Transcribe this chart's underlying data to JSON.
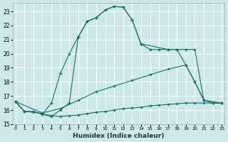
{
  "xlabel": "Humidex (Indice chaleur)",
  "bg_color": "#cce8e8",
  "grid_color": "#ffffff",
  "line_color": "#1a6e6e",
  "xlim": [
    -0.3,
    23.3
  ],
  "ylim": [
    15.0,
    23.6
  ],
  "yticks": [
    15,
    16,
    17,
    18,
    19,
    20,
    21,
    22,
    23
  ],
  "xticks": [
    0,
    1,
    2,
    3,
    4,
    5,
    6,
    7,
    8,
    9,
    10,
    11,
    12,
    13,
    14,
    15,
    16,
    17,
    18,
    19,
    20,
    21,
    22,
    23
  ],
  "curves": [
    {
      "x": [
        0,
        1,
        2,
        3,
        4,
        5,
        6,
        7,
        8,
        9,
        10,
        11,
        12,
        13,
        14,
        17,
        18,
        19,
        20,
        21,
        22,
        23
      ],
      "y": [
        16.6,
        15.9,
        15.9,
        15.7,
        16.5,
        18.6,
        20.0,
        21.2,
        22.3,
        22.55,
        23.1,
        23.35,
        23.3,
        22.4,
        20.7,
        20.3,
        20.3,
        20.3,
        20.3,
        16.7,
        16.5,
        16.5
      ]
    },
    {
      "x": [
        0,
        1,
        2,
        3,
        4,
        5,
        6,
        7,
        8,
        9,
        10,
        11,
        12,
        13,
        14,
        15,
        16,
        17,
        18,
        19,
        20,
        21,
        22,
        23
      ],
      "y": [
        16.6,
        15.9,
        15.9,
        15.7,
        15.55,
        16.0,
        16.5,
        21.2,
        22.3,
        22.55,
        23.1,
        23.35,
        23.3,
        22.4,
        20.7,
        20.3,
        20.3,
        20.3,
        20.3,
        19.2,
        18.0,
        16.7,
        16.5,
        16.5
      ]
    },
    {
      "x": [
        0,
        3,
        5,
        7,
        9,
        11,
        13,
        15,
        17,
        19,
        20,
        21,
        23
      ],
      "y": [
        16.6,
        15.8,
        16.1,
        16.7,
        17.3,
        17.7,
        18.1,
        18.5,
        18.9,
        19.2,
        18.0,
        16.7,
        16.5
      ]
    },
    {
      "x": [
        0,
        1,
        2,
        3,
        4,
        5,
        6,
        7,
        8,
        9,
        10,
        11,
        12,
        13,
        14,
        15,
        16,
        17,
        18,
        19,
        20,
        21,
        22,
        23
      ],
      "y": [
        16.6,
        15.9,
        15.85,
        15.75,
        15.6,
        15.55,
        15.6,
        15.65,
        15.75,
        15.85,
        15.9,
        16.0,
        16.1,
        16.15,
        16.2,
        16.3,
        16.35,
        16.4,
        16.45,
        16.5,
        16.5,
        16.5,
        16.5,
        16.5
      ]
    }
  ]
}
